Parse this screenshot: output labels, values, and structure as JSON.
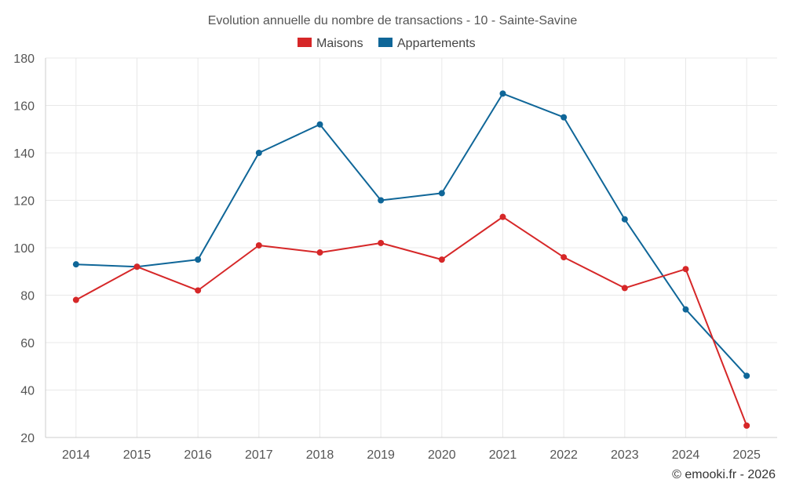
{
  "chart_data": {
    "type": "line",
    "title": "Evolution annuelle du nombre de transactions - 10 - Sainte-Savine",
    "categories": [
      "2014",
      "2015",
      "2016",
      "2017",
      "2018",
      "2019",
      "2020",
      "2021",
      "2022",
      "2023",
      "2024",
      "2025"
    ],
    "series": [
      {
        "name": "Maisons",
        "color": "#d62728",
        "values": [
          78,
          92,
          82,
          101,
          98,
          102,
          95,
          113,
          96,
          83,
          91,
          25
        ]
      },
      {
        "name": "Appartements",
        "color": "#0f6698",
        "values": [
          93,
          92,
          95,
          140,
          152,
          120,
          123,
          165,
          155,
          112,
          74,
          46
        ]
      }
    ],
    "xlabel": "",
    "ylabel": "",
    "ylim": [
      20,
      180
    ],
    "yticks": [
      20,
      40,
      60,
      80,
      100,
      120,
      140,
      160,
      180
    ],
    "grid": true,
    "legend": "top-center"
  },
  "credit": "© emooki.fr - 2026"
}
